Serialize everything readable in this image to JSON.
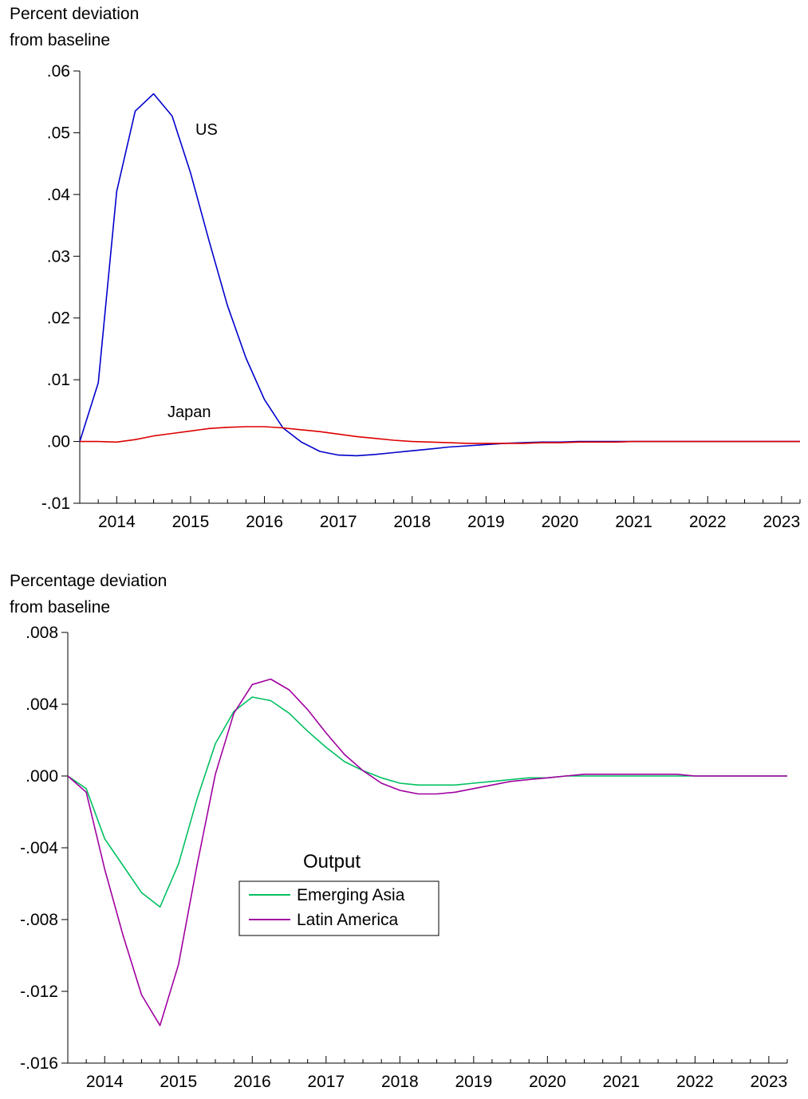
{
  "chart_data": [
    {
      "type": "line",
      "ylabel": [
        "Percent deviation",
        "from baseline"
      ],
      "ylim": [
        -0.01,
        0.06
      ],
      "yticks": [
        -0.01,
        0.0,
        0.01,
        0.02,
        0.03,
        0.04,
        0.05,
        0.06
      ],
      "ytick_labels": [
        "-.01",
        ".00",
        ".01",
        ".02",
        ".03",
        ".04",
        ".05",
        ".06"
      ],
      "xlim": [
        2013.5,
        2023.25
      ],
      "xtick_labels": [
        "2014",
        "2015",
        "2016",
        "2017",
        "2018",
        "2019",
        "2020",
        "2021",
        "2022",
        "2023"
      ],
      "grid": false,
      "annotations": [
        "US",
        "Japan"
      ],
      "series": [
        {
          "name": "US",
          "color": "#0000cc",
          "x": [
            2013.5,
            2013.75,
            2014.0,
            2014.25,
            2014.5,
            2014.75,
            2015.0,
            2015.25,
            2015.5,
            2015.75,
            2016.0,
            2016.25,
            2016.5,
            2016.75,
            2017.0,
            2017.25,
            2017.5,
            2017.75,
            2018.0,
            2018.25,
            2018.5,
            2018.75,
            2019.0,
            2019.25,
            2019.5,
            2019.75,
            2020.0,
            2020.25,
            2020.5,
            2020.75,
            2021.0,
            2021.25,
            2021.5,
            2021.75,
            2022.0,
            2022.25,
            2022.5,
            2022.75,
            2023.0,
            2023.25
          ],
          "values": [
            0.0,
            0.0095,
            0.0405,
            0.0535,
            0.0563,
            0.0527,
            0.0435,
            0.0325,
            0.022,
            0.0135,
            0.0068,
            0.0022,
            -0.0001,
            -0.0016,
            -0.0022,
            -0.0023,
            -0.0021,
            -0.0018,
            -0.0015,
            -0.0012,
            -0.0009,
            -0.0007,
            -0.0005,
            -0.0003,
            -0.0002,
            -0.0001,
            -0.0001,
            0.0,
            0.0,
            0.0,
            0.0,
            0.0,
            0.0,
            0.0,
            0.0,
            0.0,
            0.0,
            0.0,
            0.0,
            0.0
          ]
        },
        {
          "name": "Japan",
          "color": "#dd0000",
          "x": [
            2013.5,
            2013.75,
            2014.0,
            2014.25,
            2014.5,
            2014.75,
            2015.0,
            2015.25,
            2015.5,
            2015.75,
            2016.0,
            2016.25,
            2016.5,
            2016.75,
            2017.0,
            2017.25,
            2017.5,
            2017.75,
            2018.0,
            2018.25,
            2018.5,
            2018.75,
            2019.0,
            2019.25,
            2019.5,
            2019.75,
            2020.0,
            2020.25,
            2020.5,
            2020.75,
            2021.0,
            2021.25,
            2021.5,
            2021.75,
            2022.0,
            2022.25,
            2022.5,
            2022.75,
            2023.0,
            2023.25
          ],
          "values": [
            0.0,
            0.0,
            -0.0001,
            0.0003,
            0.0009,
            0.0013,
            0.0017,
            0.0021,
            0.0023,
            0.0024,
            0.0024,
            0.0022,
            0.0019,
            0.0016,
            0.0012,
            0.0008,
            0.0005,
            0.0002,
            0.0,
            -0.0001,
            -0.0002,
            -0.0003,
            -0.0003,
            -0.0003,
            -0.0003,
            -0.0002,
            -0.0002,
            -0.0001,
            -0.0001,
            -0.0001,
            0.0,
            0.0,
            0.0,
            0.0,
            0.0,
            0.0,
            0.0,
            0.0,
            0.0,
            0.0
          ]
        }
      ]
    },
    {
      "type": "line",
      "ylabel": [
        "Percentage deviation",
        "from baseline"
      ],
      "ylim": [
        -0.016,
        0.008
      ],
      "yticks": [
        -0.016,
        -0.012,
        -0.008,
        -0.004,
        0.0,
        0.004,
        0.008
      ],
      "ytick_labels": [
        "-.016",
        "-.012",
        "-.008",
        "-.004",
        ".000",
        ".004",
        ".008"
      ],
      "xlim": [
        2013.5,
        2023.25
      ],
      "xtick_labels": [
        "2014",
        "2015",
        "2016",
        "2017",
        "2018",
        "2019",
        "2020",
        "2021",
        "2022",
        "2023"
      ],
      "grid": false,
      "legend": {
        "title": "Output",
        "placement": "center",
        "entries": [
          "Emerging Asia",
          "Latin America"
        ]
      },
      "series": [
        {
          "name": "Emerging Asia",
          "color": "#00c060",
          "x": [
            2013.5,
            2013.75,
            2014.0,
            2014.25,
            2014.5,
            2014.75,
            2015.0,
            2015.25,
            2015.5,
            2015.75,
            2016.0,
            2016.25,
            2016.5,
            2016.75,
            2017.0,
            2017.25,
            2017.5,
            2017.75,
            2018.0,
            2018.25,
            2018.5,
            2018.75,
            2019.0,
            2019.25,
            2019.5,
            2019.75,
            2020.0,
            2020.25,
            2020.5,
            2020.75,
            2021.0,
            2021.25,
            2021.5,
            2021.75,
            2022.0,
            2022.25,
            2022.5,
            2022.75,
            2023.0,
            2023.25
          ],
          "values": [
            0.0,
            -0.0007,
            -0.0035,
            -0.005,
            -0.0065,
            -0.0073,
            -0.0049,
            -0.0013,
            0.0018,
            0.0036,
            0.0044,
            0.0042,
            0.0035,
            0.0025,
            0.0016,
            0.0008,
            0.0003,
            -0.0001,
            -0.0004,
            -0.0005,
            -0.0005,
            -0.0005,
            -0.0004,
            -0.0003,
            -0.0002,
            -0.0001,
            -0.0001,
            0.0,
            0.0,
            0.0,
            0.0,
            0.0,
            0.0,
            0.0,
            0.0,
            0.0,
            0.0,
            0.0,
            0.0,
            0.0
          ]
        },
        {
          "name": "Latin America",
          "color": "#a000a0",
          "x": [
            2013.5,
            2013.75,
            2014.0,
            2014.25,
            2014.5,
            2014.75,
            2015.0,
            2015.25,
            2015.5,
            2015.75,
            2016.0,
            2016.25,
            2016.5,
            2016.75,
            2017.0,
            2017.25,
            2017.5,
            2017.75,
            2018.0,
            2018.25,
            2018.5,
            2018.75,
            2019.0,
            2019.25,
            2019.5,
            2019.75,
            2020.0,
            2020.25,
            2020.5,
            2020.75,
            2021.0,
            2021.25,
            2021.5,
            2021.75,
            2022.0,
            2022.25,
            2022.5,
            2022.75,
            2023.0,
            2023.25
          ],
          "values": [
            0.0,
            -0.0009,
            -0.0052,
            -0.0089,
            -0.0122,
            -0.0139,
            -0.0105,
            -0.005,
            0.0001,
            0.0035,
            0.0051,
            0.0054,
            0.0048,
            0.0037,
            0.0024,
            0.0012,
            0.0003,
            -0.0004,
            -0.0008,
            -0.001,
            -0.001,
            -0.0009,
            -0.0007,
            -0.0005,
            -0.0003,
            -0.0002,
            -0.0001,
            0.0,
            0.0001,
            0.0001,
            0.0001,
            0.0001,
            0.0001,
            0.0001,
            0.0,
            0.0,
            0.0,
            0.0,
            0.0,
            0.0
          ]
        }
      ]
    }
  ]
}
